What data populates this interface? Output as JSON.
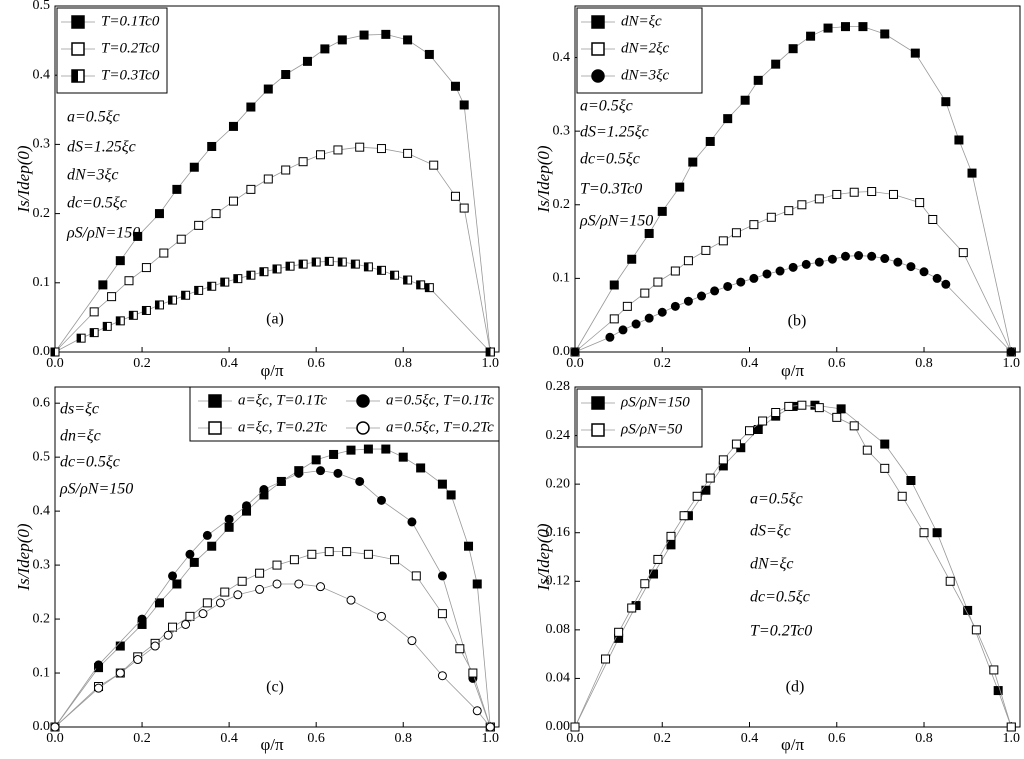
{
  "chart_data": [
    {
      "type": "line",
      "xlabel": "φ/π",
      "ylabel": "Is/Idep(0)",
      "legend": "upper left",
      "xlim": [
        0,
        1.02
      ],
      "ylim": [
        0,
        0.5
      ],
      "xticks": [
        {
          "value": 0,
          "label": "0.0"
        },
        0.2,
        0.4,
        0.6,
        0.8,
        {
          "value": 1,
          "label": "1.0"
        }
      ],
      "yticks": [
        {
          "value": 0,
          "label": "0.0"
        },
        0.1,
        0.2,
        0.3,
        0.4,
        0.5
      ],
      "annotations": [
        "a=0.5ξc",
        "dS=1.25ξc",
        "dN=3ξc",
        "dc=0.5ξc",
        "ρS/ρN=150",
        "(a)"
      ],
      "series": [
        {
          "name": "T=0.1Tc0",
          "marker": "square-filled",
          "color": "#000000",
          "x": [
            0,
            0.11,
            0.15,
            0.19,
            0.24,
            0.28,
            0.32,
            0.36,
            0.41,
            0.45,
            0.49,
            0.53,
            0.58,
            0.62,
            0.66,
            0.71,
            0.76,
            0.81,
            0.86,
            0.92,
            0.94,
            1.0
          ],
          "values": [
            0,
            0.097,
            0.132,
            0.167,
            0.2,
            0.235,
            0.267,
            0.297,
            0.326,
            0.354,
            0.38,
            0.401,
            0.42,
            0.438,
            0.451,
            0.458,
            0.459,
            0.451,
            0.43,
            0.384,
            0.357,
            0
          ]
        },
        {
          "name": "T=0.2Tc0",
          "marker": "square-open",
          "color": "#000000",
          "x": [
            0,
            0.09,
            0.13,
            0.17,
            0.21,
            0.25,
            0.29,
            0.33,
            0.37,
            0.41,
            0.45,
            0.49,
            0.53,
            0.57,
            0.61,
            0.65,
            0.7,
            0.75,
            0.81,
            0.87,
            0.92,
            0.94,
            1.0
          ],
          "values": [
            0,
            0.058,
            0.08,
            0.103,
            0.122,
            0.143,
            0.163,
            0.183,
            0.2,
            0.218,
            0.235,
            0.25,
            0.263,
            0.275,
            0.285,
            0.292,
            0.296,
            0.294,
            0.287,
            0.27,
            0.225,
            0.208,
            0
          ]
        },
        {
          "name": "T=0.3Tc0",
          "marker": "square-half",
          "color": "#000000",
          "x": [
            0,
            0.06,
            0.09,
            0.12,
            0.15,
            0.18,
            0.21,
            0.24,
            0.27,
            0.3,
            0.33,
            0.36,
            0.39,
            0.42,
            0.45,
            0.48,
            0.51,
            0.54,
            0.57,
            0.6,
            0.63,
            0.66,
            0.69,
            0.72,
            0.75,
            0.78,
            0.81,
            0.84,
            0.86,
            1.0
          ],
          "values": [
            0,
            0.02,
            0.028,
            0.037,
            0.045,
            0.053,
            0.06,
            0.068,
            0.075,
            0.082,
            0.089,
            0.095,
            0.101,
            0.106,
            0.111,
            0.116,
            0.12,
            0.124,
            0.127,
            0.13,
            0.131,
            0.13,
            0.127,
            0.123,
            0.118,
            0.111,
            0.104,
            0.097,
            0.093,
            0
          ]
        }
      ]
    },
    {
      "type": "line",
      "xlabel": "φ/π",
      "ylabel": "Is/Idep(0)",
      "legend": "upper left",
      "xlim": [
        0,
        1.02
      ],
      "ylim": [
        0,
        0.47
      ],
      "xticks": [
        {
          "value": 0,
          "label": "0.0"
        },
        0.2,
        0.4,
        0.6,
        0.8,
        {
          "value": 1,
          "label": "1.0"
        }
      ],
      "yticks": [
        {
          "value": 0,
          "label": "0.0"
        },
        0.1,
        0.2,
        0.3,
        0.4
      ],
      "annotations": [
        "a=0.5ξc",
        "dS=1.25ξc",
        "dc=0.5ξc",
        "T=0.3Tc0",
        "ρS/ρN=150",
        "(b)"
      ],
      "series": [
        {
          "name": "dN=ξc",
          "marker": "square-filled",
          "color": "#000000",
          "x": [
            0,
            0.09,
            0.13,
            0.17,
            0.2,
            0.24,
            0.27,
            0.31,
            0.35,
            0.39,
            0.42,
            0.46,
            0.5,
            0.54,
            0.58,
            0.62,
            0.66,
            0.71,
            0.78,
            0.85,
            0.88,
            0.91,
            1.0
          ],
          "values": [
            0,
            0.091,
            0.126,
            0.161,
            0.191,
            0.224,
            0.258,
            0.286,
            0.317,
            0.342,
            0.369,
            0.391,
            0.412,
            0.429,
            0.44,
            0.442,
            0.442,
            0.432,
            0.406,
            0.34,
            0.288,
            0.243,
            0
          ]
        },
        {
          "name": "dN=2ξc",
          "marker": "square-open",
          "color": "#000000",
          "x": [
            0,
            0.09,
            0.12,
            0.16,
            0.19,
            0.23,
            0.26,
            0.3,
            0.34,
            0.37,
            0.41,
            0.45,
            0.49,
            0.52,
            0.56,
            0.6,
            0.64,
            0.68,
            0.73,
            0.79,
            0.82,
            0.89,
            1.0
          ],
          "values": [
            0,
            0.045,
            0.062,
            0.08,
            0.095,
            0.11,
            0.124,
            0.138,
            0.151,
            0.162,
            0.173,
            0.183,
            0.192,
            0.2,
            0.208,
            0.214,
            0.217,
            0.218,
            0.214,
            0.203,
            0.18,
            0.135,
            0
          ]
        },
        {
          "name": "dN=3ξc",
          "marker": "circle-filled",
          "color": "#000000",
          "x": [
            0,
            0.08,
            0.11,
            0.14,
            0.17,
            0.2,
            0.23,
            0.26,
            0.29,
            0.32,
            0.35,
            0.38,
            0.41,
            0.44,
            0.47,
            0.5,
            0.53,
            0.56,
            0.59,
            0.62,
            0.65,
            0.68,
            0.71,
            0.74,
            0.77,
            0.8,
            0.83,
            0.85,
            1.0
          ],
          "values": [
            0,
            0.02,
            0.03,
            0.038,
            0.046,
            0.054,
            0.062,
            0.069,
            0.076,
            0.083,
            0.089,
            0.095,
            0.1,
            0.106,
            0.11,
            0.115,
            0.119,
            0.122,
            0.126,
            0.13,
            0.131,
            0.13,
            0.127,
            0.122,
            0.116,
            0.109,
            0.1,
            0.092,
            0
          ]
        }
      ]
    },
    {
      "type": "line",
      "xlabel": "φ/π",
      "ylabel": "Is/Idep(0)",
      "legend": "upper center",
      "xlim": [
        0,
        1.02
      ],
      "ylim": [
        0,
        0.63
      ],
      "xticks": [
        {
          "value": 0,
          "label": "0.0"
        },
        0.2,
        0.4,
        0.6,
        0.8,
        {
          "value": 1,
          "label": "1.0"
        }
      ],
      "yticks": [
        {
          "value": 0,
          "label": "0.0"
        },
        0.1,
        0.2,
        0.3,
        0.4,
        0.5,
        0.6
      ],
      "annotations": [
        "ds=ξc",
        "dn=ξc",
        "dc=0.5ξc",
        "ρS/ρN=150",
        "(c)"
      ],
      "series": [
        {
          "name": "a=ξc, T=0.1Tc",
          "marker": "square-filled",
          "color": "#000000",
          "x": [
            0,
            0.1,
            0.15,
            0.2,
            0.24,
            0.28,
            0.32,
            0.36,
            0.4,
            0.44,
            0.48,
            0.52,
            0.56,
            0.6,
            0.64,
            0.68,
            0.72,
            0.76,
            0.8,
            0.84,
            0.89,
            0.91,
            0.95,
            0.97,
            1.0
          ],
          "values": [
            0,
            0.11,
            0.15,
            0.19,
            0.23,
            0.265,
            0.305,
            0.335,
            0.37,
            0.4,
            0.43,
            0.455,
            0.475,
            0.495,
            0.505,
            0.513,
            0.515,
            0.515,
            0.5,
            0.48,
            0.45,
            0.43,
            0.335,
            0.265,
            0
          ]
        },
        {
          "name": "a=0.5ξc, T=0.1Tc",
          "marker": "circle-filled",
          "color": "#000000",
          "x": [
            0,
            0.1,
            0.2,
            0.27,
            0.31,
            0.35,
            0.4,
            0.44,
            0.48,
            0.52,
            0.56,
            0.61,
            0.65,
            0.7,
            0.75,
            0.82,
            0.89,
            0.96,
            1.0
          ],
          "values": [
            0,
            0.115,
            0.2,
            0.28,
            0.32,
            0.355,
            0.385,
            0.41,
            0.44,
            0.455,
            0.47,
            0.475,
            0.47,
            0.455,
            0.42,
            0.38,
            0.28,
            0.09,
            0
          ]
        },
        {
          "name": "a=ξc, T=0.2Tc",
          "marker": "square-open",
          "color": "#000000",
          "x": [
            0,
            0.1,
            0.15,
            0.19,
            0.23,
            0.27,
            0.31,
            0.35,
            0.39,
            0.43,
            0.47,
            0.51,
            0.55,
            0.59,
            0.63,
            0.67,
            0.72,
            0.78,
            0.83,
            0.89,
            0.93,
            0.96,
            1.0
          ],
          "values": [
            0,
            0.075,
            0.1,
            0.13,
            0.155,
            0.185,
            0.205,
            0.23,
            0.25,
            0.27,
            0.285,
            0.3,
            0.31,
            0.32,
            0.325,
            0.325,
            0.32,
            0.31,
            0.28,
            0.21,
            0.145,
            0.1,
            0
          ]
        },
        {
          "name": "a=0.5ξc, T=0.2Tc",
          "marker": "circle-open",
          "color": "#000000",
          "x": [
            0,
            0.1,
            0.15,
            0.19,
            0.23,
            0.26,
            0.3,
            0.34,
            0.38,
            0.42,
            0.47,
            0.51,
            0.56,
            0.61,
            0.68,
            0.75,
            0.82,
            0.89,
            0.97,
            1.0
          ],
          "values": [
            0,
            0.072,
            0.1,
            0.125,
            0.15,
            0.17,
            0.19,
            0.21,
            0.23,
            0.245,
            0.255,
            0.265,
            0.265,
            0.26,
            0.235,
            0.205,
            0.16,
            0.095,
            0.03,
            0
          ]
        }
      ]
    },
    {
      "type": "line",
      "xlabel": "φ/π",
      "ylabel": "Is/Idep(0)",
      "legend": "upper left",
      "xlim": [
        0,
        1.02
      ],
      "ylim": [
        0,
        0.28
      ],
      "xticks": [
        {
          "value": 0,
          "label": "0.0"
        },
        0.2,
        0.4,
        0.6,
        0.8,
        {
          "value": 1,
          "label": "1.0"
        }
      ],
      "yticks": [
        {
          "value": 0,
          "label": "0.00"
        },
        {
          "value": 0.04,
          "label": "0.04"
        },
        {
          "value": 0.08,
          "label": "0.08"
        },
        {
          "value": 0.12,
          "label": "0.12"
        },
        {
          "value": 0.16,
          "label": "0.16"
        },
        {
          "value": 0.2,
          "label": "0.20"
        },
        {
          "value": 0.24,
          "label": "0.24"
        },
        {
          "value": 0.28,
          "label": "0.28"
        }
      ],
      "annotations": [
        "a=0.5ξc",
        "dS=ξc",
        "dN=ξc",
        "dc=0.5ξc",
        "T=0.2Tc0",
        "(d)"
      ],
      "series": [
        {
          "name": "ρS/ρN=150",
          "marker": "square-filled",
          "color": "#000000",
          "x": [
            0,
            0.1,
            0.14,
            0.18,
            0.22,
            0.26,
            0.3,
            0.34,
            0.38,
            0.42,
            0.46,
            0.5,
            0.55,
            0.61,
            0.71,
            0.77,
            0.83,
            0.9,
            0.97,
            1.0
          ],
          "values": [
            0,
            0.073,
            0.1,
            0.126,
            0.15,
            0.174,
            0.195,
            0.215,
            0.23,
            0.245,
            0.256,
            0.264,
            0.265,
            0.262,
            0.233,
            0.203,
            0.16,
            0.096,
            0.03,
            0
          ]
        },
        {
          "name": "ρS/ρN=50",
          "marker": "square-open",
          "color": "#000000",
          "x": [
            0,
            0.07,
            0.1,
            0.13,
            0.16,
            0.19,
            0.22,
            0.25,
            0.28,
            0.31,
            0.34,
            0.37,
            0.4,
            0.43,
            0.46,
            0.49,
            0.52,
            0.56,
            0.6,
            0.64,
            0.67,
            0.71,
            0.75,
            0.8,
            0.86,
            0.92,
            0.96,
            1.0
          ],
          "values": [
            0,
            0.056,
            0.078,
            0.098,
            0.118,
            0.138,
            0.157,
            0.174,
            0.19,
            0.205,
            0.22,
            0.233,
            0.244,
            0.252,
            0.259,
            0.264,
            0.265,
            0.263,
            0.255,
            0.248,
            0.228,
            0.213,
            0.19,
            0.16,
            0.12,
            0.08,
            0.047,
            0
          ]
        }
      ]
    }
  ]
}
